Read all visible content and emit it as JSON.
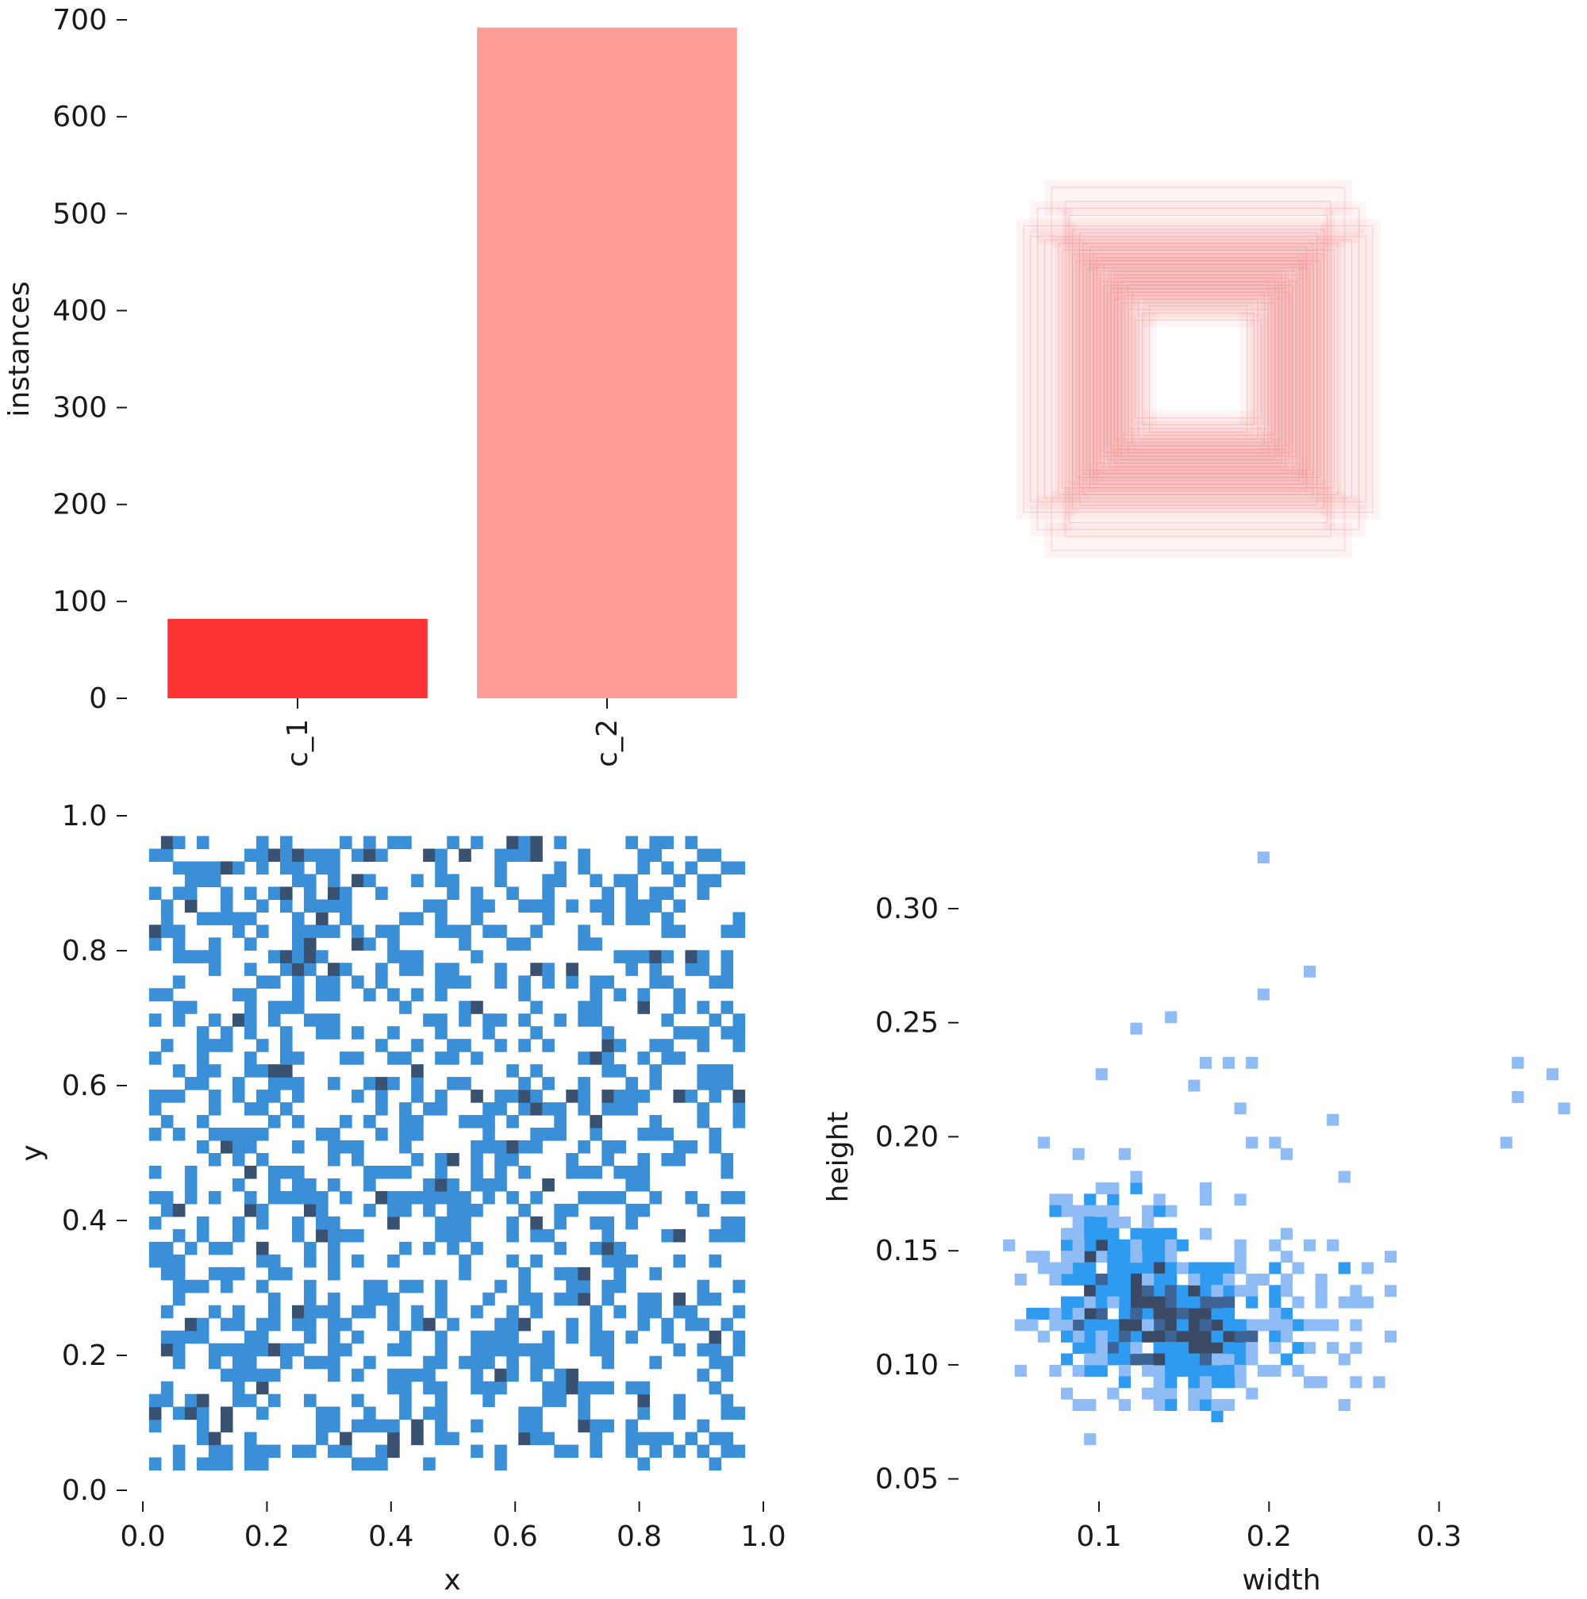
{
  "chart_data": [
    {
      "type": "bar",
      "panel": "top-left",
      "categories": [
        "c_1",
        "c_2"
      ],
      "values": [
        82,
        692
      ],
      "colors": [
        "#ff3333",
        "#ff9e96"
      ],
      "ylabel": "instances",
      "ylim": [
        0,
        700
      ],
      "yticks": [
        0,
        100,
        200,
        300,
        400,
        500,
        600,
        700
      ],
      "ytick_labels": [
        "0",
        "100",
        "200",
        "300",
        "400",
        "500",
        "600",
        "700"
      ],
      "grid": false
    },
    {
      "type": "boxes",
      "panel": "top-right",
      "description_color": "#f08080",
      "center": [
        0.5,
        0.5
      ],
      "box_sizes": [
        [
          0.16,
          0.16
        ],
        [
          0.18,
          0.14
        ],
        [
          0.14,
          0.18
        ],
        [
          0.2,
          0.17
        ],
        [
          0.17,
          0.2
        ],
        [
          0.22,
          0.19
        ],
        [
          0.19,
          0.22
        ],
        [
          0.24,
          0.2
        ],
        [
          0.2,
          0.24
        ],
        [
          0.25,
          0.23
        ],
        [
          0.23,
          0.25
        ],
        [
          0.26,
          0.22
        ],
        [
          0.22,
          0.26
        ],
        [
          0.27,
          0.24
        ],
        [
          0.24,
          0.27
        ],
        [
          0.28,
          0.25
        ],
        [
          0.25,
          0.28
        ],
        [
          0.21,
          0.21
        ],
        [
          0.23,
          0.23
        ],
        [
          0.26,
          0.26
        ],
        [
          0.28,
          0.28
        ],
        [
          0.3,
          0.27
        ],
        [
          0.27,
          0.3
        ],
        [
          0.3,
          0.3
        ],
        [
          0.32,
          0.29
        ],
        [
          0.29,
          0.32
        ],
        [
          0.31,
          0.31
        ],
        [
          0.33,
          0.3
        ],
        [
          0.3,
          0.33
        ],
        [
          0.34,
          0.34
        ],
        [
          0.36,
          0.33
        ],
        [
          0.33,
          0.36
        ],
        [
          0.4,
          0.36
        ],
        [
          0.36,
          0.4
        ],
        [
          0.44,
          0.37
        ],
        [
          0.37,
          0.44
        ],
        [
          0.48,
          0.38
        ],
        [
          0.38,
          0.48
        ],
        [
          0.5,
          0.41
        ],
        [
          0.42,
          0.52
        ],
        [
          0.46,
          0.46
        ],
        [
          0.35,
          0.31
        ],
        [
          0.31,
          0.35
        ],
        [
          0.39,
          0.34
        ],
        [
          0.34,
          0.39
        ]
      ]
    },
    {
      "type": "heatmap",
      "panel": "bottom-left",
      "xlabel": "x",
      "ylabel": "y",
      "xlim": [
        0,
        1
      ],
      "ylim": [
        0,
        1
      ],
      "xticks": [
        0.0,
        0.2,
        0.4,
        0.6,
        0.8,
        1.0
      ],
      "xtick_labels": [
        "0.0",
        "0.2",
        "0.4",
        "0.6",
        "0.8",
        "1.0"
      ],
      "yticks": [
        0.0,
        0.2,
        0.4,
        0.6,
        0.8,
        1.0
      ],
      "ytick_labels": [
        "0.0",
        "0.2",
        "0.4",
        "0.6",
        "0.8",
        "1.0"
      ],
      "bins": 50,
      "x_range": [
        0.01,
        0.97
      ],
      "y_range": [
        0.03,
        0.97
      ],
      "density": 0.38,
      "dark_fraction": 0.1,
      "colors": [
        "#3b8fd6",
        "#3a5272"
      ],
      "seed": 7
    },
    {
      "type": "heatmap",
      "panel": "bottom-right",
      "xlabel": "width",
      "ylabel": "height",
      "xlim": [
        0.03,
        0.38
      ],
      "ylim": [
        0.045,
        0.34
      ],
      "xticks": [
        0.1,
        0.2,
        0.3
      ],
      "xtick_labels": [
        "0.1",
        "0.2",
        "0.3"
      ],
      "yticks": [
        0.05,
        0.1,
        0.15,
        0.2,
        0.25,
        0.3
      ],
      "ytick_labels": [
        "0.05",
        "0.10",
        "0.15",
        "0.20",
        "0.25",
        "0.30"
      ],
      "bin_width": 0.0068,
      "bin_height": 0.005,
      "clusters": [
        {
          "x": 0.11,
          "y": 0.135,
          "sx": 0.022,
          "sy": 0.022,
          "n": 330
        },
        {
          "x": 0.155,
          "y": 0.115,
          "sx": 0.02,
          "sy": 0.014,
          "n": 300
        },
        {
          "x": 0.2,
          "y": 0.125,
          "sx": 0.03,
          "sy": 0.02,
          "n": 70
        }
      ],
      "outliers": [
        [
          0.197,
          0.323
        ],
        [
          0.223,
          0.273
        ],
        [
          0.197,
          0.263
        ],
        [
          0.345,
          0.232
        ],
        [
          0.365,
          0.228
        ],
        [
          0.345,
          0.218
        ],
        [
          0.372,
          0.213
        ],
        [
          0.338,
          0.198
        ],
        [
          0.12,
          0.245
        ],
        [
          0.14,
          0.252
        ],
        [
          0.165,
          0.233
        ],
        [
          0.19,
          0.23
        ],
        [
          0.175,
          0.23
        ],
        [
          0.1,
          0.225
        ],
        [
          0.155,
          0.22
        ],
        [
          0.18,
          0.213
        ],
        [
          0.235,
          0.208
        ],
        [
          0.27,
          0.132
        ],
        [
          0.26,
          0.127
        ],
        [
          0.255,
          0.14
        ],
        [
          0.24,
          0.152
        ],
        [
          0.235,
          0.108
        ],
        [
          0.245,
          0.145
        ],
        [
          0.205,
          0.195
        ],
        [
          0.188,
          0.198
        ],
        [
          0.21,
          0.19
        ],
        [
          0.245,
          0.18
        ]
      ],
      "colors": [
        "#8fbcf5",
        "#2e9af0",
        "#3d6494",
        "#3a4a64"
      ],
      "seed": 11
    }
  ]
}
